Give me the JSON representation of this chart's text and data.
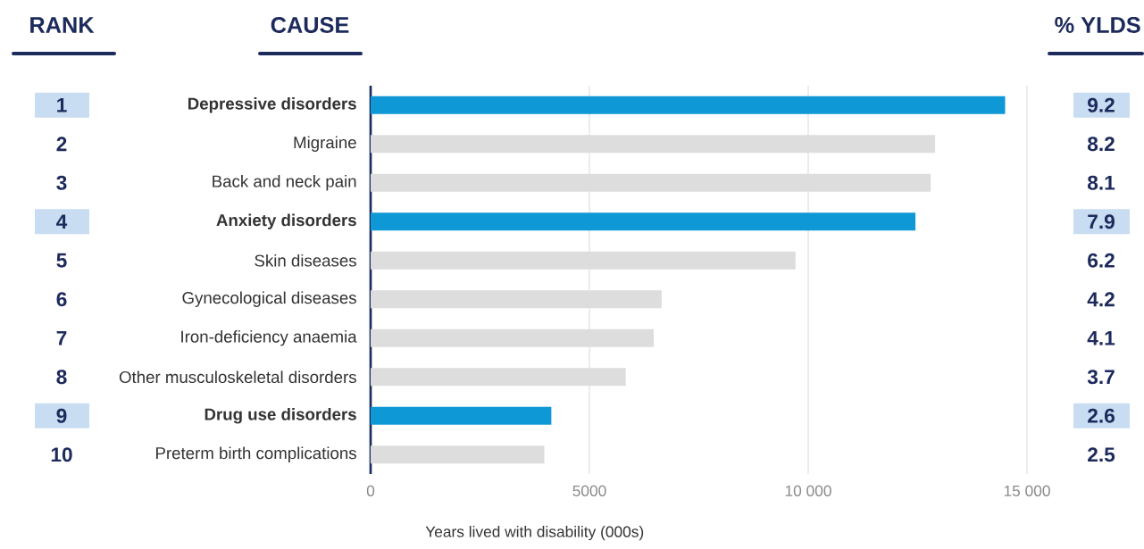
{
  "chart_data": {
    "type": "bar",
    "orientation": "horizontal",
    "categories": [
      "Depressive disorders",
      "Migraine",
      "Back and neck pain",
      "Anxiety disorders",
      "Skin diseases",
      "Gynecological diseases",
      "Iron-deficiency anaemia",
      "Other musculoskeletal disorders",
      "Drug use disorders",
      "Preterm birth complications"
    ],
    "values": [
      14500,
      12900,
      12800,
      12450,
      9710,
      6650,
      6470,
      5830,
      4130,
      3970
    ],
    "colors": [
      "#0f98d6",
      "#dddddd",
      "#dddddd",
      "#0f98d6",
      "#dddddd",
      "#dddddd",
      "#dddddd",
      "#dddddd",
      "#0f98d6",
      "#dddddd"
    ],
    "xlabel": "Years lived with disability (000s)",
    "xlim": [
      0,
      15000
    ],
    "xticks": [
      0,
      5000,
      {
        "value": 10000,
        "label": "10 000"
      },
      {
        "value": 15000,
        "label": "15 000"
      }
    ],
    "grid": "x",
    "annotations": [
      "RANK",
      "CAUSE",
      "% YLDS",
      "1",
      "2",
      "3",
      "4",
      "5",
      "6",
      "7",
      "8",
      "9",
      "10",
      "9.2",
      "8.2",
      "8.1",
      "7.9",
      "6.2",
      "4.2",
      "4.1",
      "3.7",
      "2.6",
      "2.5"
    ]
  }
}
